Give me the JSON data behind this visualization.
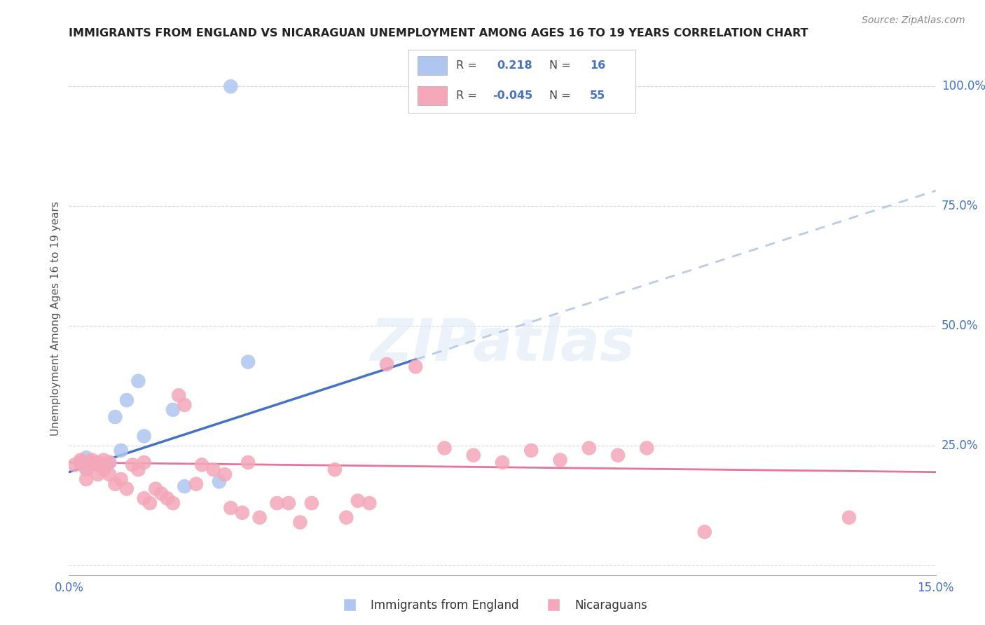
{
  "title": "IMMIGRANTS FROM ENGLAND VS NICARAGUAN UNEMPLOYMENT AMONG AGES 16 TO 19 YEARS CORRELATION CHART",
  "source": "Source: ZipAtlas.com",
  "ylabel": "Unemployment Among Ages 16 to 19 years",
  "xlim": [
    0.0,
    0.15
  ],
  "ylim": [
    -0.02,
    1.05
  ],
  "right_yticks": [
    1.0,
    0.75,
    0.5,
    0.25
  ],
  "right_yticklabels": [
    "100.0%",
    "75.0%",
    "50.0%",
    "25.0%"
  ],
  "xticks": [
    0.0,
    0.025,
    0.05,
    0.075,
    0.1,
    0.125,
    0.15
  ],
  "xticklabels": [
    "0.0%",
    "",
    "",
    "",
    "",
    "",
    "15.0%"
  ],
  "england_R": 0.218,
  "england_N": 16,
  "nicaraguan_R": -0.045,
  "nicaraguan_N": 55,
  "england_color": "#aec6f0",
  "nicaragua_color": "#f4a7b9",
  "england_line_color": "#4472c4",
  "nicaragua_line_color": "#e87497",
  "dashed_line_color": "#b8cce4",
  "legend_text_color": "#4472c4",
  "watermark": "ZIPatlas",
  "background_color": "#ffffff",
  "england_line_x0": 0.0,
  "england_line_y0": 0.195,
  "england_line_x1": 0.06,
  "england_line_y1": 0.43,
  "nicaragua_line_x0": 0.0,
  "nicaragua_line_y0": 0.215,
  "nicaragua_line_x1": 0.15,
  "nicaragua_line_y1": 0.195,
  "england_x": [
    0.002,
    0.003,
    0.003,
    0.005,
    0.006,
    0.007,
    0.008,
    0.009,
    0.01,
    0.012,
    0.013,
    0.018,
    0.02,
    0.026,
    0.031,
    0.028
  ],
  "england_y": [
    0.215,
    0.225,
    0.205,
    0.215,
    0.21,
    0.215,
    0.31,
    0.24,
    0.345,
    0.385,
    0.27,
    0.325,
    0.165,
    0.175,
    0.425,
    1.0
  ],
  "nicaragua_x": [
    0.001,
    0.002,
    0.002,
    0.003,
    0.003,
    0.004,
    0.004,
    0.005,
    0.005,
    0.006,
    0.006,
    0.007,
    0.007,
    0.008,
    0.009,
    0.01,
    0.011,
    0.012,
    0.013,
    0.013,
    0.014,
    0.015,
    0.016,
    0.017,
    0.018,
    0.019,
    0.02,
    0.022,
    0.023,
    0.025,
    0.027,
    0.028,
    0.03,
    0.031,
    0.033,
    0.036,
    0.038,
    0.04,
    0.042,
    0.046,
    0.048,
    0.05,
    0.052,
    0.055,
    0.06,
    0.065,
    0.07,
    0.075,
    0.08,
    0.085,
    0.09,
    0.095,
    0.1,
    0.11,
    0.135
  ],
  "nicaragua_y": [
    0.21,
    0.22,
    0.215,
    0.2,
    0.18,
    0.22,
    0.215,
    0.19,
    0.21,
    0.2,
    0.22,
    0.19,
    0.215,
    0.17,
    0.18,
    0.16,
    0.21,
    0.2,
    0.215,
    0.14,
    0.13,
    0.16,
    0.15,
    0.14,
    0.13,
    0.355,
    0.335,
    0.17,
    0.21,
    0.2,
    0.19,
    0.12,
    0.11,
    0.215,
    0.1,
    0.13,
    0.13,
    0.09,
    0.13,
    0.2,
    0.1,
    0.135,
    0.13,
    0.42,
    0.415,
    0.245,
    0.23,
    0.215,
    0.24,
    0.22,
    0.245,
    0.23,
    0.245,
    0.07,
    0.1
  ]
}
